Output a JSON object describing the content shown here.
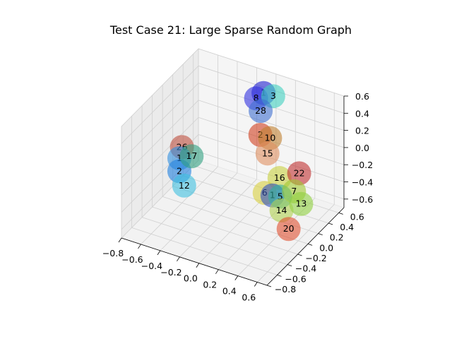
{
  "chart_data": {
    "type": "scatter",
    "projection": "3d",
    "title": "Test Case 21: Large Sparse Random Graph",
    "xlabel": "",
    "ylabel": "",
    "zlabel": "",
    "x_ticks": [
      "−0.8",
      "−0.6",
      "−0.4",
      "−0.2",
      "0.0",
      "0.2",
      "0.4",
      "0.6"
    ],
    "y_ticks": [
      "−0.8",
      "−0.6",
      "−0.4",
      "−0.2",
      "0.0",
      "0.2",
      "0.4",
      "0.6"
    ],
    "z_ticks": [
      "−0.6",
      "−0.4",
      "−0.2",
      "0.0",
      "0.2",
      "0.4",
      "0.6"
    ],
    "xlim": [
      -0.8,
      0.7
    ],
    "ylim": [
      -0.8,
      0.7
    ],
    "zlim": [
      -0.7,
      0.6
    ],
    "grid": true,
    "nodes": [
      {
        "label": "3",
        "color": "#40d0c0",
        "x": 0.05,
        "y": 0.55,
        "z": 0.45
      },
      {
        "label": "1",
        "color": "#2020d0",
        "x": -0.05,
        "y": 0.55,
        "z": 0.45
      },
      {
        "label": "8",
        "color": "#3030e0",
        "x": -0.1,
        "y": 0.5,
        "z": 0.4
      },
      {
        "label": "28",
        "color": "#4070d0",
        "x": 0.0,
        "y": 0.4,
        "z": 0.35
      },
      {
        "label": "2",
        "color": "#d04020",
        "x": 0.05,
        "y": 0.3,
        "z": 0.15
      },
      {
        "label": "10",
        "color": "#c08030",
        "x": 0.15,
        "y": 0.3,
        "z": 0.15
      },
      {
        "label": "15",
        "color": "#e09060",
        "x": 0.15,
        "y": 0.25,
        "z": 0.0
      },
      {
        "label": "22",
        "color": "#c03030",
        "x": 0.45,
        "y": 0.3,
        "z": -0.15
      },
      {
        "label": "16",
        "color": "#c8d040",
        "x": 0.3,
        "y": 0.2,
        "z": -0.2
      },
      {
        "label": "7",
        "color": "#a0c830",
        "x": 0.45,
        "y": 0.2,
        "z": -0.3
      },
      {
        "label": "13",
        "color": "#90d040",
        "x": 0.55,
        "y": 0.15,
        "z": -0.38
      },
      {
        "label": "6",
        "color": "#d8d040",
        "x": 0.2,
        "y": 0.1,
        "z": -0.35
      },
      {
        "label": "1",
        "color": "#3050c0",
        "x": 0.28,
        "y": 0.1,
        "z": -0.35
      },
      {
        "label": "5",
        "color": "#30b0a0",
        "x": 0.35,
        "y": 0.12,
        "z": -0.35
      },
      {
        "label": "14",
        "color": "#b0d050",
        "x": 0.4,
        "y": 0.05,
        "z": -0.45
      },
      {
        "label": "20",
        "color": "#e05030",
        "x": 0.5,
        "y": 0.0,
        "z": -0.6
      },
      {
        "label": "26",
        "color": "#c05040",
        "x": -0.6,
        "y": 0.0,
        "z": -0.05
      },
      {
        "label": "17",
        "color": "#30a080",
        "x": -0.5,
        "y": 0.0,
        "z": -0.12
      },
      {
        "label": "1",
        "color": "#3090e0",
        "x": -0.6,
        "y": -0.05,
        "z": -0.15
      },
      {
        "label": "2",
        "color": "#2080e0",
        "x": -0.6,
        "y": -0.05,
        "z": -0.3
      },
      {
        "label": "12",
        "color": "#40c0e0",
        "x": -0.55,
        "y": -0.05,
        "z": -0.45
      }
    ]
  }
}
